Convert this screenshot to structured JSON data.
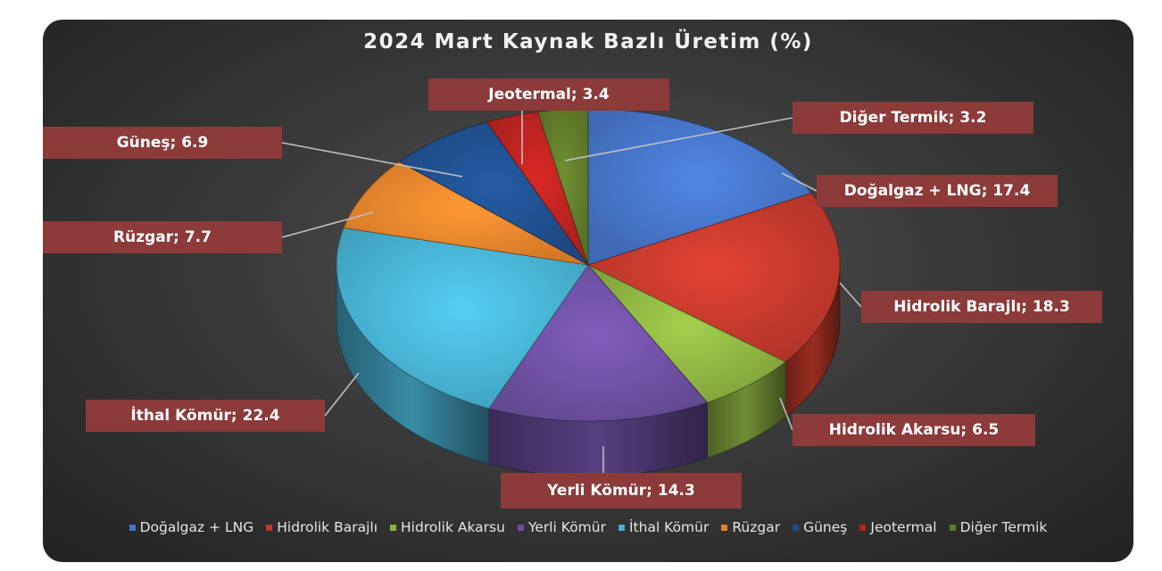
{
  "chart_data": {
    "type": "pie",
    "title": "2024 Mart Kaynak Bazlı Üretim (%)",
    "series": [
      {
        "name": "Doğalgaz + LNG",
        "value": 17.4,
        "label": "Doğalgaz + LNG; 17.4",
        "color": "#4472c4"
      },
      {
        "name": "Hidrolik Barajlı",
        "value": 18.3,
        "label": "Hidrolik Barajlı; 18.3",
        "color": "#c0392b"
      },
      {
        "name": "Hidrolik Akarsu",
        "value": 6.5,
        "label": "Hidrolik Akarsu; 6.5",
        "color": "#8bb041"
      },
      {
        "name": "Yerli Kömür",
        "value": 14.3,
        "label": "Yerli Kömür; 14.3",
        "color": "#6d4fa0"
      },
      {
        "name": "İthal Kömür",
        "value": 22.4,
        "label": "İthal Kömür; 22.4",
        "color": "#47afd0"
      },
      {
        "name": "Rüzgar",
        "value": 7.7,
        "label": "Rüzgar; 7.7",
        "color": "#e5822b"
      },
      {
        "name": "Güneş",
        "value": 6.9,
        "label": "Güneş; 6.9",
        "color": "#1f4e8c"
      },
      {
        "name": "Jeotermal",
        "value": 3.4,
        "label": "Jeotermal; 3.4",
        "color": "#b8231f"
      },
      {
        "name": "Diğer Termik",
        "value": 3.2,
        "label": "Diğer Termik; 3.2",
        "color": "#5f7a2a"
      }
    ],
    "legend_position": "bottom",
    "style": "3d-pie"
  },
  "colors": {
    "background": "#333333",
    "callout_bg": "#8c3a3a",
    "callout_text": "#ffffff",
    "leader_line": "#bfbfbf"
  }
}
